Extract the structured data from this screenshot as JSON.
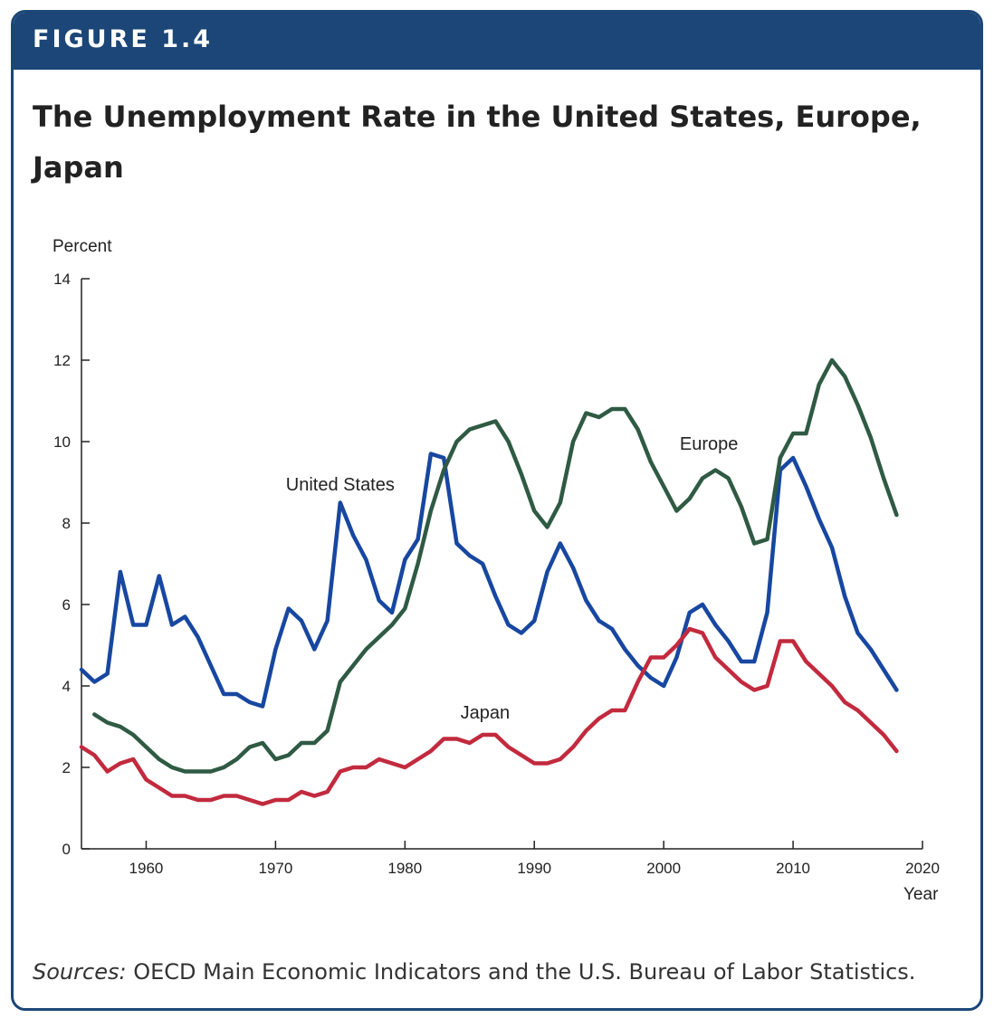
{
  "banner": {
    "label": "FIGURE 1.4"
  },
  "title": "The Unemployment Rate in the United States, Europe, Japan",
  "source": {
    "lead": "Sources:",
    "text": "OECD Main Economic Indicators and the U.S. Bureau of Labor Statistics."
  },
  "colors": {
    "banner": "#1b4677",
    "united_states": "#1747a0",
    "europe": "#2f5a44",
    "japan": "#c22a3e"
  },
  "chart_data": {
    "type": "line",
    "ylabel": "Percent",
    "xlabel": "Year",
    "xlim": [
      1955,
      2020
    ],
    "ylim": [
      0,
      14
    ],
    "xticks": [
      1960,
      1970,
      1980,
      1990,
      2000,
      2010,
      2020
    ],
    "yticks": [
      0,
      2,
      4,
      6,
      8,
      10,
      12,
      14
    ],
    "grid": false,
    "legend": "none",
    "series": [
      {
        "name": "United States",
        "color": "#1747a0",
        "x": [
          1955,
          1956,
          1957,
          1958,
          1959,
          1960,
          1961,
          1962,
          1963,
          1964,
          1965,
          1966,
          1967,
          1968,
          1969,
          1970,
          1971,
          1972,
          1973,
          1974,
          1975,
          1976,
          1977,
          1978,
          1979,
          1980,
          1981,
          1982,
          1983,
          1984,
          1985,
          1986,
          1987,
          1988,
          1989,
          1990,
          1991,
          1992,
          1993,
          1994,
          1995,
          1996,
          1997,
          1998,
          1999,
          2000,
          2001,
          2002,
          2003,
          2004,
          2005,
          2006,
          2007,
          2008,
          2009,
          2010,
          2011,
          2012,
          2013,
          2014,
          2015,
          2016,
          2017,
          2018
        ],
        "y": [
          4.4,
          4.1,
          4.3,
          6.8,
          5.5,
          5.5,
          6.7,
          5.5,
          5.7,
          5.2,
          4.5,
          3.8,
          3.8,
          3.6,
          3.5,
          4.9,
          5.9,
          5.6,
          4.9,
          5.6,
          8.5,
          7.7,
          7.1,
          6.1,
          5.8,
          7.1,
          7.6,
          9.7,
          9.6,
          7.5,
          7.2,
          7.0,
          6.2,
          5.5,
          5.3,
          5.6,
          6.8,
          7.5,
          6.9,
          6.1,
          5.6,
          5.4,
          4.9,
          4.5,
          4.2,
          4.0,
          4.7,
          5.8,
          6.0,
          5.5,
          5.1,
          4.6,
          4.6,
          5.8,
          9.3,
          9.6,
          8.9,
          8.1,
          7.4,
          6.2,
          5.3,
          4.9,
          4.4,
          3.9
        ]
      },
      {
        "name": "Europe",
        "color": "#2f5a44",
        "x": [
          1956,
          1957,
          1958,
          1959,
          1960,
          1961,
          1962,
          1963,
          1964,
          1965,
          1966,
          1967,
          1968,
          1969,
          1970,
          1971,
          1972,
          1973,
          1974,
          1975,
          1976,
          1977,
          1978,
          1979,
          1980,
          1981,
          1982,
          1983,
          1984,
          1985,
          1986,
          1987,
          1988,
          1989,
          1990,
          1991,
          1992,
          1993,
          1994,
          1995,
          1996,
          1997,
          1998,
          1999,
          2000,
          2001,
          2002,
          2003,
          2004,
          2005,
          2006,
          2007,
          2008,
          2009,
          2010,
          2011,
          2012,
          2013,
          2014,
          2015,
          2016,
          2017,
          2018
        ],
        "y": [
          3.3,
          3.1,
          3.0,
          2.8,
          2.5,
          2.2,
          2.0,
          1.9,
          1.9,
          1.9,
          2.0,
          2.2,
          2.5,
          2.6,
          2.2,
          2.3,
          2.6,
          2.6,
          2.9,
          4.1,
          4.5,
          4.9,
          5.2,
          5.5,
          5.9,
          7.0,
          8.3,
          9.3,
          10.0,
          10.3,
          10.4,
          10.5,
          10.0,
          9.2,
          8.3,
          7.9,
          8.5,
          10.0,
          10.7,
          10.6,
          10.8,
          10.8,
          10.3,
          9.5,
          8.9,
          8.3,
          8.6,
          9.1,
          9.3,
          9.1,
          8.4,
          7.5,
          7.6,
          9.6,
          10.2,
          10.2,
          11.4,
          12.0,
          11.6,
          10.9,
          10.1,
          9.1,
          8.2
        ]
      },
      {
        "name": "Japan",
        "color": "#c22a3e",
        "x": [
          1955,
          1956,
          1957,
          1958,
          1959,
          1960,
          1961,
          1962,
          1963,
          1964,
          1965,
          1966,
          1967,
          1968,
          1969,
          1970,
          1971,
          1972,
          1973,
          1974,
          1975,
          1976,
          1977,
          1978,
          1979,
          1980,
          1981,
          1982,
          1983,
          1984,
          1985,
          1986,
          1987,
          1988,
          1989,
          1990,
          1991,
          1992,
          1993,
          1994,
          1995,
          1996,
          1997,
          1998,
          1999,
          2000,
          2001,
          2002,
          2003,
          2004,
          2005,
          2006,
          2007,
          2008,
          2009,
          2010,
          2011,
          2012,
          2013,
          2014,
          2015,
          2016,
          2017,
          2018
        ],
        "y": [
          2.5,
          2.3,
          1.9,
          2.1,
          2.2,
          1.7,
          1.5,
          1.3,
          1.3,
          1.2,
          1.2,
          1.3,
          1.3,
          1.2,
          1.1,
          1.2,
          1.2,
          1.4,
          1.3,
          1.4,
          1.9,
          2.0,
          2.0,
          2.2,
          2.1,
          2.0,
          2.2,
          2.4,
          2.7,
          2.7,
          2.6,
          2.8,
          2.8,
          2.5,
          2.3,
          2.1,
          2.1,
          2.2,
          2.5,
          2.9,
          3.2,
          3.4,
          3.4,
          4.1,
          4.7,
          4.7,
          5.0,
          5.4,
          5.3,
          4.7,
          4.4,
          4.1,
          3.9,
          4.0,
          5.1,
          5.1,
          4.6,
          4.3,
          4.0,
          3.6,
          3.4,
          3.1,
          2.8,
          2.4
        ]
      }
    ],
    "annotations": [
      {
        "text": "United States",
        "x": 1975.0,
        "y": 8.8
      },
      {
        "text": "Europe",
        "x": 2003.5,
        "y": 9.8
      },
      {
        "text": "Japan",
        "x": 1986.2,
        "y": 3.2
      }
    ]
  }
}
